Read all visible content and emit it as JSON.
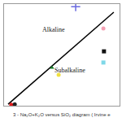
{
  "chart_data": {
    "type": "scatter",
    "title": "3 - Na₂O+K₂O versus SiO₂ diagram ( Irvine e",
    "annotations": [
      "Alkaline",
      "Subalkaline"
    ],
    "xlim": [
      35,
      75
    ],
    "ylim": [
      0,
      20
    ],
    "tick_labels": false,
    "grid": false,
    "series": [
      {
        "type": "line",
        "color": "#000000",
        "x": [
          36.4,
          73.0
        ],
        "values": [
          0.3,
          18.4
        ]
      },
      {
        "type": "scatter",
        "marker": "circle",
        "color": "#e31a1c",
        "x": [
          37.5
        ],
        "values": [
          0.2
        ]
      },
      {
        "type": "scatter",
        "marker": "circle",
        "color": "#222222",
        "x": [
          38.7
        ],
        "values": [
          0.3
        ]
      },
      {
        "type": "scatter",
        "marker": "triangle",
        "color": "#1a7a2a",
        "x": [
          51.6
        ],
        "values": [
          7.5
        ]
      },
      {
        "type": "scatter",
        "marker": "circle",
        "color": "#f0e040",
        "x": [
          53.9
        ],
        "values": [
          6.1
        ]
      },
      {
        "type": "scatter",
        "marker": "plus",
        "color": "#6a6adf",
        "x": [
          59.8
        ],
        "values": [
          19.5
        ]
      },
      {
        "type": "scatter",
        "marker": "circle",
        "color": "#f4a0b4",
        "x": [
          69.4
        ],
        "values": [
          15.2
        ]
      },
      {
        "type": "scatter",
        "marker": "square",
        "color": "#111111",
        "x": [
          69.6
        ],
        "values": [
          10.7
        ]
      },
      {
        "type": "scatter",
        "marker": "square",
        "color": "#7fd8e8",
        "x": [
          69.4
        ],
        "values": [
          8.5
        ]
      }
    ]
  }
}
